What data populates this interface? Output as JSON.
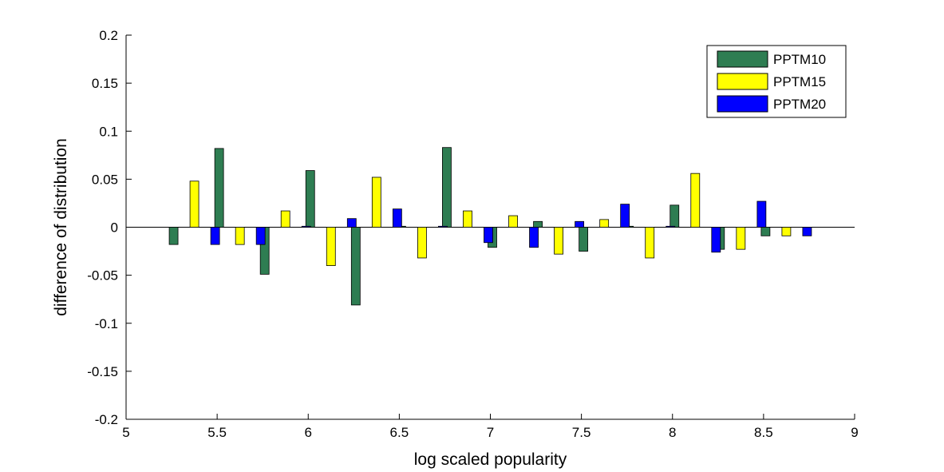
{
  "chart_data": {
    "type": "bar",
    "xlabel": "log scaled popularity",
    "ylabel": "difference of distribution",
    "xlim": [
      5,
      9
    ],
    "ylim": [
      -0.2,
      0.2
    ],
    "x_ticks": [
      5,
      5.5,
      6,
      6.5,
      7,
      7.5,
      8,
      8.5,
      9
    ],
    "x_tick_labels": [
      "5",
      "5.5",
      "6",
      "6.5",
      "7",
      "7.5",
      "8",
      "8.5",
      "9"
    ],
    "y_ticks": [
      -0.2,
      -0.15,
      -0.1,
      -0.05,
      0,
      0.05,
      0.1,
      0.15,
      0.2
    ],
    "y_tick_labels": [
      "-0.2",
      "-0.15",
      "-0.1",
      "-0.05",
      "0",
      "0.05",
      "0.1",
      "0.15",
      "0.2"
    ],
    "grid": false,
    "legend_position": "top-right",
    "x": [
      5.375,
      5.625,
      5.875,
      6.125,
      6.375,
      6.625,
      6.875,
      7.125,
      7.375,
      7.625,
      7.875,
      8.125,
      8.375,
      8.625
    ],
    "series": [
      {
        "name": "PPTM10",
        "color": "#2e7d52",
        "values": [
          -0.018,
          0.082,
          -0.049,
          0.059,
          -0.081,
          0.001,
          0.083,
          -0.021,
          0.006,
          -0.025,
          0.001,
          0.023,
          -0.023,
          -0.009
        ]
      },
      {
        "name": "PPTM15",
        "color": "#ffff00",
        "values": [
          0.048,
          -0.018,
          0.017,
          -0.04,
          0.052,
          -0.032,
          0.017,
          0.012,
          -0.028,
          0.008,
          -0.032,
          0.056,
          -0.023,
          -0.009
        ]
      },
      {
        "name": "PPTM20",
        "color": "#0000ff",
        "values": [
          -0.018,
          -0.018,
          0.001,
          0.009,
          0.019,
          0.001,
          -0.016,
          -0.021,
          0.006,
          0.024,
          0.001,
          -0.026,
          0.027,
          -0.009
        ]
      }
    ]
  }
}
